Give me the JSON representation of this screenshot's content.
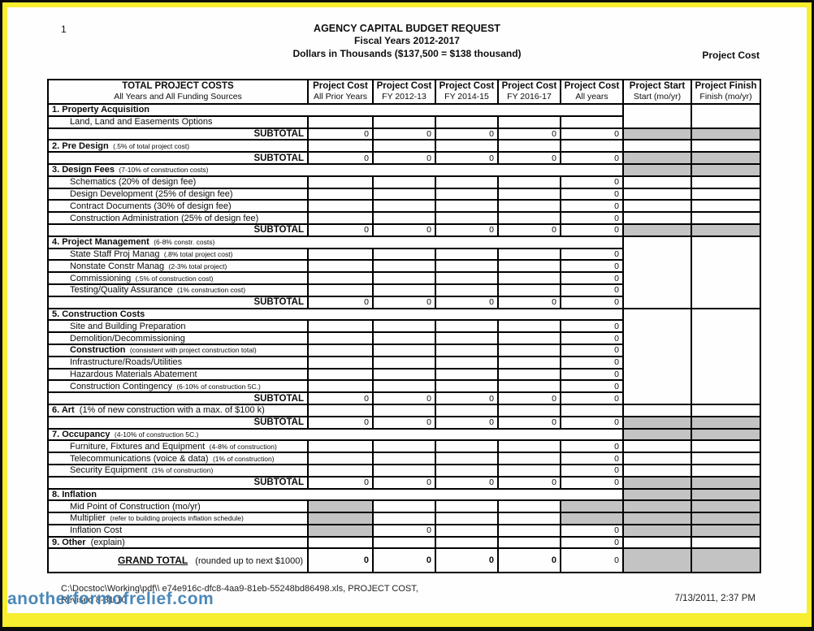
{
  "page": {
    "number": "1",
    "title_line1": "AGENCY CAPITAL BUDGET REQUEST",
    "title_line2": "Fiscal Years 2012-2017",
    "title_line3": "Dollars in Thousands ($137,500 = $138 thousand)",
    "top_right_label": "Project Cost"
  },
  "colors": {
    "frame_yellow": "#f6ee2e",
    "frame_black": "#0c0c0c",
    "cell_gray": "#c3c3c3",
    "watermark_blue": "#3d7fb3"
  },
  "table": {
    "header": {
      "label_title": "TOTAL PROJECT COSTS",
      "label_sub": "All Years and All Funding Sources",
      "columns": [
        {
          "title": "Project Cost",
          "sub": "All Prior Years"
        },
        {
          "title": "Project Cost",
          "sub": "FY 2012-13"
        },
        {
          "title": "Project Cost",
          "sub": "FY 2014-15"
        },
        {
          "title": "Project Cost",
          "sub": "FY 2016-17"
        },
        {
          "title": "Project Cost",
          "sub": "All years"
        },
        {
          "title": "Project Start",
          "sub": "Start (mo/yr)"
        },
        {
          "title": "Project Finish",
          "sub": "Finish (mo/yr)"
        }
      ]
    },
    "rows": [
      {
        "type": "section",
        "label": "1. Property Acquisition",
        "span": true,
        "sf": "top"
      },
      {
        "type": "item",
        "label": "Land, Land and Easements Options",
        "cells": [
          "",
          "",
          "",
          "",
          ""
        ],
        "sf": "open"
      },
      {
        "type": "subtotal",
        "label": "SUBTOTAL",
        "cells": [
          "0",
          "0",
          "0",
          "0",
          "0"
        ],
        "sf": "gray"
      },
      {
        "type": "section",
        "label": "2. Pre Design",
        "note": "(.5% of total project cost)",
        "cells": [
          "",
          "",
          "",
          "",
          ""
        ],
        "sf": "top"
      },
      {
        "type": "subtotal",
        "label": "SUBTOTAL",
        "cells": [
          "0",
          "0",
          "0",
          "0",
          "0"
        ],
        "sf": "gray"
      },
      {
        "type": "section",
        "label": "3. Design Fees",
        "note": "(7-10% of construction costs)",
        "span": true,
        "sf": "gray"
      },
      {
        "type": "item",
        "label": "Schematics (20% of design fee)",
        "cells": [
          "",
          "",
          "",
          "",
          "0"
        ],
        "sf": "top"
      },
      {
        "type": "item",
        "label": "Design Development (25% of design fee)",
        "cells": [
          "",
          "",
          "",
          "",
          "0"
        ],
        "sf": "top"
      },
      {
        "type": "item",
        "label": "Contract Documents (30% of design fee)",
        "cells": [
          "",
          "",
          "",
          "",
          "0"
        ],
        "sf": "top"
      },
      {
        "type": "item",
        "label": "Construction Administration (25% of design fee)",
        "cells": [
          "",
          "",
          "",
          "",
          "0"
        ],
        "sf": "top"
      },
      {
        "type": "subtotal",
        "label": "SUBTOTAL",
        "cells": [
          "0",
          "0",
          "0",
          "0",
          "0"
        ],
        "sf": "gray"
      },
      {
        "type": "section",
        "label": "4. Project Management",
        "note": "(6-8% constr. costs)",
        "span": true,
        "sf": "top"
      },
      {
        "type": "item",
        "label": "State Staff Proj Manag",
        "note": "(.8% total project cost)",
        "cells": [
          "",
          "",
          "",
          "",
          "0"
        ],
        "sf": "open"
      },
      {
        "type": "item",
        "label": "Nonstate Constr Manag",
        "note": "(2-3% total project)",
        "cells": [
          "",
          "",
          "",
          "",
          "0"
        ],
        "sf": "open"
      },
      {
        "type": "item",
        "label": "Commissioning",
        "note": "(.5% of construction cost)",
        "cells": [
          "",
          "",
          "",
          "",
          "0"
        ],
        "sf": "open"
      },
      {
        "type": "item",
        "label": "Testing/Quality Assurance",
        "note": "(1% construction cost)",
        "cells": [
          "",
          "",
          "",
          "",
          "0"
        ],
        "sf": "open"
      },
      {
        "type": "subtotal",
        "label": "SUBTOTAL",
        "cells": [
          "0",
          "0",
          "0",
          "0",
          "0"
        ],
        "sf": "open"
      },
      {
        "type": "section",
        "label": "5. Construction Costs",
        "span": true,
        "sf": "top"
      },
      {
        "type": "item",
        "label": "Site and Building Preparation",
        "cells": [
          "",
          "",
          "",
          "",
          "0"
        ],
        "sf": "open"
      },
      {
        "type": "item",
        "label": "Demolition/Decommissioning",
        "cells": [
          "",
          "",
          "",
          "",
          "0"
        ],
        "sf": "open"
      },
      {
        "type": "item",
        "label": "Construction",
        "bold": true,
        "note": "(consistent with project construction total)",
        "cells": [
          "",
          "",
          "",
          "",
          "0"
        ],
        "sf": "open"
      },
      {
        "type": "item",
        "label": "Infrastructure/Roads/Utilities",
        "cells": [
          "",
          "",
          "",
          "",
          "0"
        ],
        "sf": "open"
      },
      {
        "type": "item",
        "label": "Hazardous Materials Abatement",
        "cells": [
          "",
          "",
          "",
          "",
          "0"
        ],
        "sf": "open"
      },
      {
        "type": "item",
        "label": "Construction Contingency",
        "note": "(6-10% of construction 5C.)",
        "cells": [
          "",
          "",
          "",
          "",
          "0"
        ],
        "sf": "open"
      },
      {
        "type": "subtotal",
        "label": "SUBTOTAL",
        "cells": [
          "0",
          "0",
          "0",
          "0",
          "0"
        ],
        "sf": "open"
      },
      {
        "type": "section",
        "label": "6. Art",
        "note": "(1% of new construction with a max. of $100 k)",
        "note_small": false,
        "cells": [
          "",
          "",
          "",
          "",
          ""
        ],
        "sf": "top"
      },
      {
        "type": "subtotal",
        "label": "SUBTOTAL",
        "cells": [
          "0",
          "0",
          "0",
          "0",
          "0"
        ],
        "sf": "gray"
      },
      {
        "type": "section",
        "label": "7. Occupancy",
        "note": "(4-10% of construction 5C.)",
        "span": true,
        "sf": "gray"
      },
      {
        "type": "item",
        "label": "Furniture, Fixtures and Equipment",
        "note": "(4-8% of construction)",
        "cells": [
          "",
          "",
          "",
          "",
          "0"
        ],
        "sf": "top"
      },
      {
        "type": "item",
        "label": "Telecommunications (voice & data)",
        "note": "(1% of construction)",
        "cells": [
          "",
          "",
          "",
          "",
          "0"
        ],
        "sf": "top"
      },
      {
        "type": "item",
        "label": "Security Equipment",
        "note": "(1% of construction)",
        "cells": [
          "",
          "",
          "",
          "",
          "0"
        ],
        "sf": "top"
      },
      {
        "type": "subtotal",
        "label": "SUBTOTAL",
        "cells": [
          "0",
          "0",
          "0",
          "0",
          "0"
        ],
        "sf": "gray"
      },
      {
        "type": "section",
        "label": "8. Inflation",
        "span": true,
        "sf": "gray"
      },
      {
        "type": "item",
        "label": "Mid Point of Construction (mo/yr)",
        "cells": [
          "",
          "",
          "",
          "",
          ""
        ],
        "gray": [
          1,
          0,
          0,
          0,
          1
        ],
        "sf": "gray"
      },
      {
        "type": "item",
        "label": "Multiplier",
        "note": "(refer to building projects inflation schedule)",
        "cells": [
          "",
          "",
          "",
          "",
          ""
        ],
        "gray": [
          1,
          0,
          0,
          0,
          1
        ],
        "sf": "gray"
      },
      {
        "type": "item",
        "label": "Inflation Cost",
        "cells": [
          "",
          "0",
          "",
          "",
          "0"
        ],
        "gray": [
          1,
          0,
          0,
          0,
          0
        ],
        "sf": "gray"
      },
      {
        "type": "section",
        "label": "9. Other",
        "note": "(explain)",
        "note_small": false,
        "cells": [
          "",
          "",
          "",
          "",
          "0"
        ],
        "sf": "top"
      },
      {
        "type": "grand",
        "label": "GRAND TOTAL",
        "note": "(rounded up to next  $1000)",
        "cells": [
          "0",
          "0",
          "0",
          "0",
          "0"
        ],
        "bold_cells": [
          1,
          1,
          1,
          1,
          0
        ],
        "sf": "gray"
      }
    ]
  },
  "footer": {
    "path_line": "C:\\Docstoc\\Working\\pdf\\\\ e74e916c-dfc8-4aa9-81eb-55248bd86498.xls,  PROJECT COST,",
    "revised_line": "Revised 8-31-10",
    "datetime": "7/13/2011, 2:37 PM",
    "watermark": "anotherformofrelief.com"
  }
}
